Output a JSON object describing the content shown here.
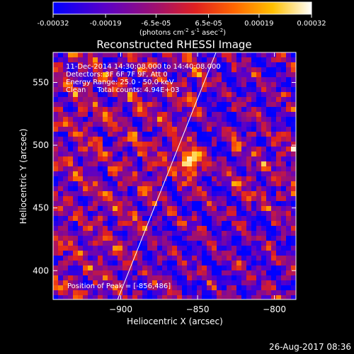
{
  "colorbar": {
    "ticks": [
      "-0.00032",
      "-0.00019",
      "-6.5e-05",
      "6.5e-05",
      "0.00019",
      "0.00032"
    ],
    "units_main": "(photons cm",
    "units_sup1": "-2",
    "units_mid1": " s",
    "units_sup2": "-1",
    "units_mid2": " asec",
    "units_sup3": "-2",
    "units_end": ")",
    "vmin": -0.00032,
    "vmax": 0.00032
  },
  "chart_data": {
    "type": "heatmap",
    "title": "Reconstructed RHESSI Image",
    "xlabel": "Heliocentric X (arcsec)",
    "ylabel": "Heliocentric Y (arcsec)",
    "xlim": [
      -944,
      -786
    ],
    "ylim": [
      377,
      574
    ],
    "xticks": [
      -900,
      -850,
      -800
    ],
    "xtick_labels": [
      "−900",
      "−850",
      "−800"
    ],
    "yticks": [
      400,
      450,
      500,
      550
    ],
    "ytick_labels": [
      "400",
      "450",
      "500",
      "550"
    ],
    "limb_line": [
      [
        -902,
        377
      ],
      [
        -838,
        574
      ]
    ],
    "peak": [
      -856,
      486
    ],
    "annotations": [
      "11-Dec-2014 14:30:08.000 to 14:40:08.000",
      "Detectors: 3F 6F 7F 9F, Att 0",
      "Energy Range: 25.0 - 50.0 keV",
      "Clean     Total counts: 4.94E+03"
    ],
    "peak_label": "Position of Peak = [-856,486]"
  },
  "footer": {
    "timestamp": "26-Aug-2017 08:36"
  }
}
